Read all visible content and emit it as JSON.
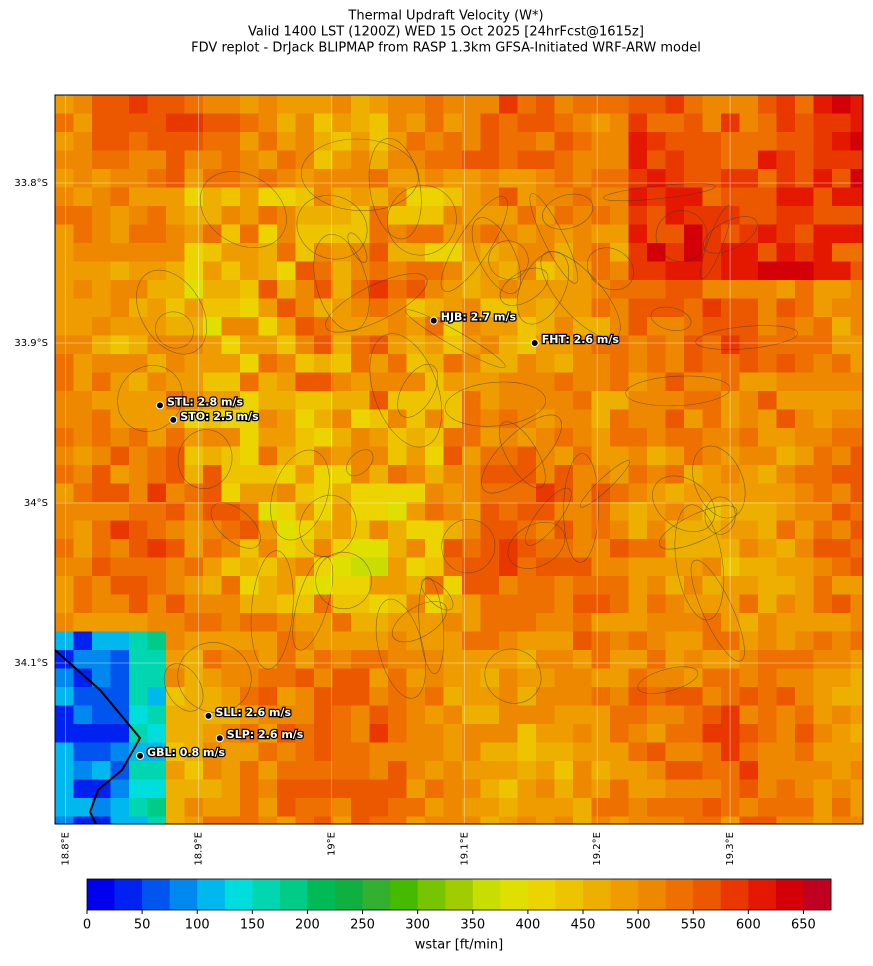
{
  "title_lines": [
    "Thermal Updraft Velocity (W*)",
    "Valid 1400 LST (1200Z) WED 15 Oct 2025 [24hrFcst@1615z]",
    "FDV replot - DrJack BLIPMAP from RASP 1.3km GFSA-Initiated WRF-ARW model"
  ],
  "map": {
    "lon_range": [
      18.792,
      19.4
    ],
    "lat_range": [
      -33.745,
      -34.2006
    ],
    "lat_ticks": [
      {
        "value": -33.8,
        "label": "33.8°S"
      },
      {
        "value": -33.9,
        "label": "33.9°S"
      },
      {
        "value": -34.0,
        "label": "34°S"
      },
      {
        "value": -34.1,
        "label": "34.1°S"
      }
    ],
    "lon_ticks": [
      {
        "value": 18.8,
        "label": "18.8°E"
      },
      {
        "value": 18.9,
        "label": "18.9°E"
      },
      {
        "value": 19.0,
        "label": "19°E"
      },
      {
        "value": 19.1,
        "label": "19.1°E"
      },
      {
        "value": 19.2,
        "label": "19.2°E"
      },
      {
        "value": 19.3,
        "label": "19.3°E"
      }
    ],
    "stations": [
      {
        "label": "HJB: 2.7 m/s",
        "lon": 19.077,
        "lat": -33.886
      },
      {
        "label": "FHT: 2.6 m/s",
        "lon": 19.153,
        "lat": -33.9
      },
      {
        "label": "STL: 2.8 m/s",
        "lon": 18.871,
        "lat": -33.939
      },
      {
        "label": "STO: 2.5 m/s",
        "lon": 18.881,
        "lat": -33.948
      },
      {
        "label": "SLL: 2.6 m/s",
        "lon": 18.9075,
        "lat": -34.133
      },
      {
        "label": "SLP: 2.6 m/s",
        "lon": 18.916,
        "lat": -34.147
      },
      {
        "label": "GBL: 0.8 m/s",
        "lon": 18.856,
        "lat": -34.158
      }
    ]
  },
  "colorbar": {
    "label": "wstar [ft/min]",
    "lim": [
      0,
      675
    ],
    "ticks": [
      0,
      50,
      100,
      150,
      200,
      250,
      300,
      350,
      400,
      450,
      500,
      550,
      600,
      650
    ],
    "colors": [
      "#0000ee",
      "#0022f0",
      "#0055ee",
      "#0088ee",
      "#00b8ee",
      "#00dddd",
      "#00d6b0",
      "#00cc88",
      "#00bb55",
      "#10b040",
      "#33b030",
      "#44bb00",
      "#77c400",
      "#a0cc00",
      "#c8dd00",
      "#e0e000",
      "#ecd400",
      "#eec400",
      "#eeb000",
      "#ee9c00",
      "#ee8800",
      "#ee7000",
      "#ec5800",
      "#e83800",
      "#e41800",
      "#d40008",
      "#c00020"
    ]
  }
}
